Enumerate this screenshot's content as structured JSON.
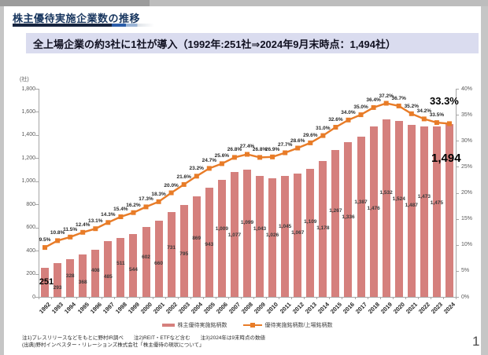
{
  "page": {
    "title": "株主優待実施企業数の推移",
    "page_number": "1"
  },
  "banner": {
    "prefix": "全上場企業の",
    "bold": "約3社に1社が導入",
    "suffix": "（1992年:251社⇒2024年9月末時点：1,494社）"
  },
  "chart_data": {
    "type": "bar+line",
    "unit_label": "(社)",
    "categories": [
      "1992",
      "1993",
      "1994",
      "1995",
      "1996",
      "1997",
      "1998",
      "1999",
      "2000",
      "2001",
      "2002",
      "2003",
      "2004",
      "2005",
      "2006",
      "2007",
      "2008",
      "2009",
      "2010",
      "2011",
      "2012",
      "2013",
      "2014",
      "2015",
      "2016",
      "2017",
      "2018",
      "2019",
      "2020",
      "2021",
      "2022",
      "2023",
      "2024"
    ],
    "series": [
      {
        "name": "株主優待実施銘柄数",
        "type": "bar",
        "axis": "left",
        "color": "#d5807d",
        "values": [
          251,
          293,
          328,
          368,
          408,
          485,
          511,
          544,
          602,
          660,
          731,
          795,
          869,
          943,
          1009,
          1077,
          1099,
          1043,
          1026,
          1045,
          1067,
          1109,
          1178,
          1267,
          1336,
          1387,
          1476,
          1532,
          1524,
          1487,
          1473,
          1475,
          1494
        ],
        "labels": [
          "251",
          "293",
          "328",
          "368",
          "408",
          "485",
          "511",
          "544",
          "602",
          "660",
          "731",
          "795",
          "869",
          "943",
          "1,009",
          "1,077",
          "1,099",
          "1,043",
          "1,026",
          "1,045",
          "1,067",
          "1,109",
          "1,178",
          "1,267",
          "1,336",
          "1,387",
          "1,476",
          "1,532",
          "1,524",
          "1,487",
          "1,473",
          "1,475",
          "1,494"
        ]
      },
      {
        "name": "優待実施銘柄数/上場銘柄数",
        "type": "line",
        "axis": "right",
        "color": "#e87c28",
        "values": [
          9.5,
          10.8,
          11.5,
          12.4,
          13.1,
          14.3,
          15.4,
          16.2,
          17.3,
          18.3,
          20.0,
          21.6,
          23.2,
          24.7,
          25.6,
          26.8,
          27.4,
          26.8,
          26.9,
          27.7,
          28.6,
          29.6,
          31.0,
          32.6,
          34.0,
          35.0,
          36.4,
          37.2,
          36.7,
          35.2,
          34.2,
          33.5,
          33.3
        ],
        "labels": [
          "9.5%",
          "10.8%",
          "11.5%",
          "12.4%",
          "13.1%",
          "14.3%",
          "15.4%",
          "16.2%",
          "17.3%",
          "18.3%",
          "20.0%",
          "21.6%",
          "23.2%",
          "24.7%",
          "25.6%",
          "26.8%",
          "27.4%",
          "26.8%",
          "26.9%",
          "27.7%",
          "28.6%",
          "29.6%",
          "31.0%",
          "32.6%",
          "34.0%",
          "35.0%",
          "36.4%",
          "37.2%",
          "36.7%",
          "35.2%",
          "34.2%",
          "33.5%",
          "33.3%"
        ]
      }
    ],
    "left_axis": {
      "max": 1800,
      "ticks": [
        "1,800",
        "1,600",
        "1,400",
        "1,200",
        "1,000",
        "800",
        "600",
        "400",
        "200",
        "0"
      ]
    },
    "right_axis": {
      "max": 40,
      "ticks": [
        "40%",
        "35%",
        "30%",
        "25%",
        "20%",
        "15%",
        "10%",
        "5%",
        "0%"
      ]
    },
    "emphasis": {
      "first_bar": "251",
      "last_bar": "1,494",
      "last_pct": "33.3%"
    },
    "legend_position": "bottom",
    "grid": false
  },
  "footnotes": {
    "line1": "注1)プレスリリースなどをもとに野村IR調べ　　注2)REIT・ETFなど含む　　注3)2024年は9末時点の数値",
    "line2": "(出典)野村インベスター・リレーションズ株式会社「株主優待の現状について」"
  }
}
